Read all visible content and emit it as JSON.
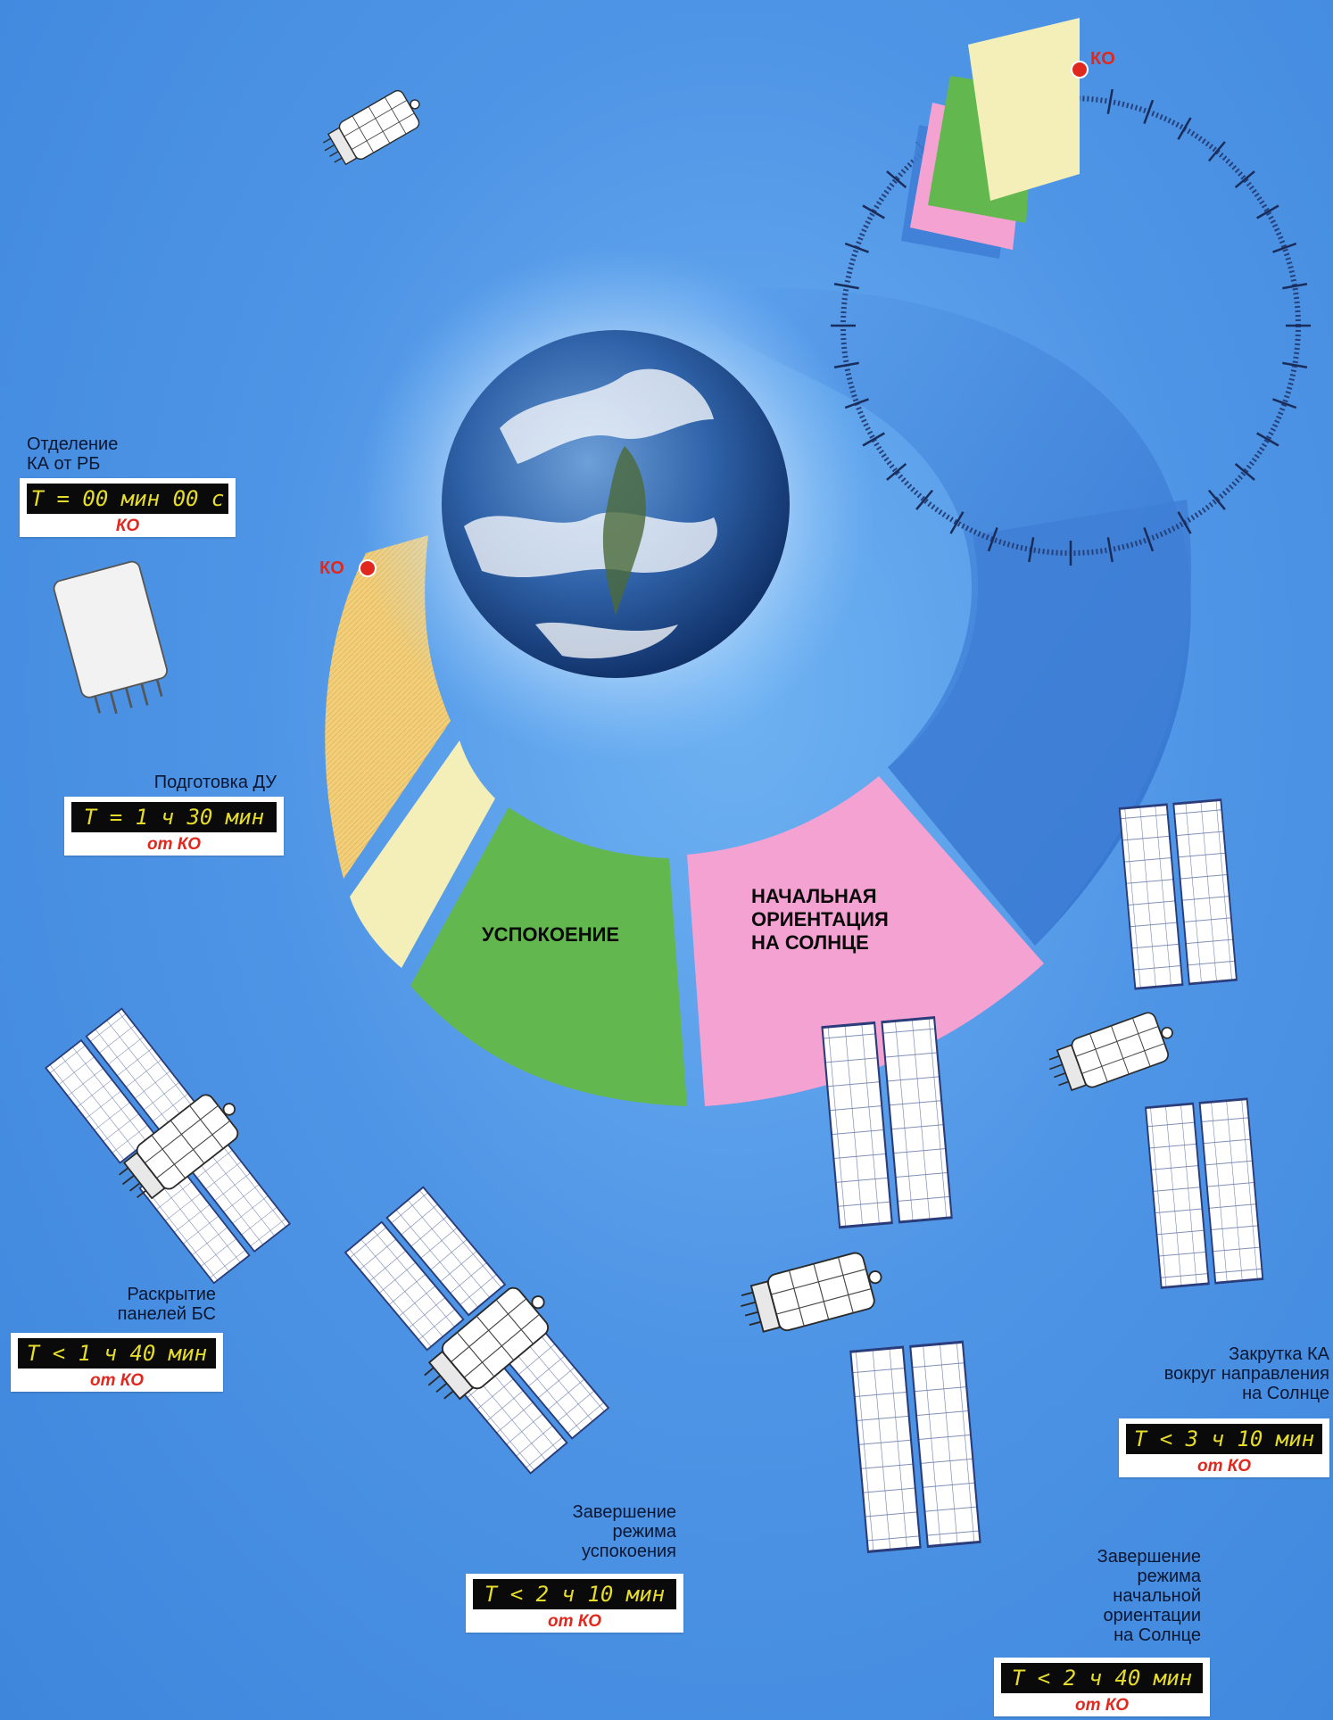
{
  "ko_marker": "КО",
  "phases": {
    "calming": "УСПОКОЕНИЕ",
    "sun_orientation": [
      "НАЧАЛЬНАЯ",
      "ОРИЕНТАЦИЯ",
      "НА СОЛНЦЕ"
    ]
  },
  "events": {
    "separation": {
      "caption": [
        "Отделение",
        "КА от РБ"
      ],
      "time": "T = 00 мин 00 с",
      "ref": "КО"
    },
    "propulsion_prep": {
      "caption": [
        "Подготовка ДУ"
      ],
      "time": "T = 1 ч 30 мин",
      "ref": "от КО"
    },
    "panel_deploy": {
      "caption": [
        "Раскрытие",
        "панелей БС"
      ],
      "time": "T < 1 ч 40 мин",
      "ref": "от КО"
    },
    "calming_end": {
      "caption": [
        "Завершение",
        "режима",
        "успокоения"
      ],
      "time": "T < 2 ч 10 мин",
      "ref": "от КО"
    },
    "orientation_end": {
      "caption": [
        "Завершение",
        "режима",
        "начальной",
        "ориентации",
        "на Солнце"
      ],
      "time": "T < 2 ч 40 мин",
      "ref": "от КО"
    },
    "spin_up": {
      "caption": [
        "Закрутка КА",
        "вокруг направления",
        "на Солнце"
      ],
      "time": "T < 3 ч 10 мин",
      "ref": "от КО"
    }
  },
  "colors": {
    "background": "#4f95e6",
    "propulsion_prep_sector": "#f2cf7a",
    "panel_deploy_sector": "#f4efb8",
    "calming_sector": "#62b84e",
    "sun_orientation_sector": "#f3a2d2",
    "spin_sector": "#3f7fd6",
    "marker": "#e0281f",
    "timer_digits": "#e6dc2a"
  }
}
